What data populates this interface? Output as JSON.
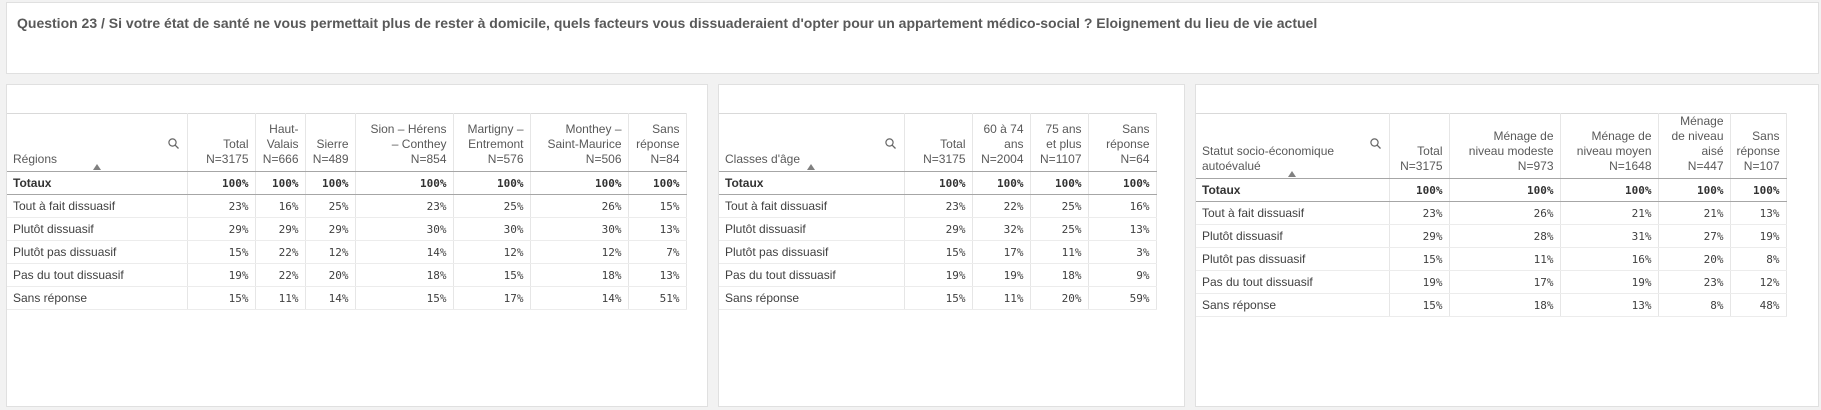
{
  "title": "Question 23 / Si votre état de santé ne vous permettait plus de rester à domicile, quels facteurs vous dissuaderaient d'opter pour un appartement médico-social ? Eloignement du lieu de vie actuel",
  "tables": [
    {
      "dimension": "Régions",
      "columns": [
        "Total N=3175",
        "Haut-Valais N=666",
        "Sierre N=489",
        "Sion – Hérens – Conthey N=854",
        "Martigny – Entremont N=576",
        "Monthey – Saint-Maurice N=506",
        "Sans réponse N=84"
      ],
      "totals_label": "Totaux",
      "totals": [
        "100%",
        "100%",
        "100%",
        "100%",
        "100%",
        "100%",
        "100%"
      ],
      "rows": [
        {
          "label": "Tout à fait dissuasif",
          "values": [
            "23%",
            "16%",
            "25%",
            "23%",
            "25%",
            "26%",
            "15%"
          ]
        },
        {
          "label": "Plutôt dissuasif",
          "values": [
            "29%",
            "29%",
            "29%",
            "30%",
            "30%",
            "30%",
            "13%"
          ]
        },
        {
          "label": "Plutôt pas dissuasif",
          "values": [
            "15%",
            "22%",
            "12%",
            "14%",
            "12%",
            "12%",
            "7%"
          ]
        },
        {
          "label": "Pas du tout dissuasif",
          "values": [
            "19%",
            "22%",
            "20%",
            "18%",
            "15%",
            "18%",
            "13%"
          ]
        },
        {
          "label": "Sans réponse",
          "values": [
            "15%",
            "11%",
            "14%",
            "15%",
            "17%",
            "14%",
            "51%"
          ]
        }
      ]
    },
    {
      "dimension": "Classes d'âge",
      "columns": [
        "Total N=3175",
        "60 à 74 ans N=2004",
        "75 ans et plus N=1107",
        "Sans réponse N=64"
      ],
      "totals_label": "Totaux",
      "totals": [
        "100%",
        "100%",
        "100%",
        "100%"
      ],
      "rows": [
        {
          "label": "Tout à fait dissuasif",
          "values": [
            "23%",
            "22%",
            "25%",
            "16%"
          ]
        },
        {
          "label": "Plutôt dissuasif",
          "values": [
            "29%",
            "32%",
            "25%",
            "13%"
          ]
        },
        {
          "label": "Plutôt pas dissuasif",
          "values": [
            "15%",
            "17%",
            "11%",
            "3%"
          ]
        },
        {
          "label": "Pas du tout dissuasif",
          "values": [
            "19%",
            "19%",
            "18%",
            "9%"
          ]
        },
        {
          "label": "Sans réponse",
          "values": [
            "15%",
            "11%",
            "20%",
            "59%"
          ]
        }
      ]
    },
    {
      "dimension": "Statut socio-économique autoévalué",
      "columns": [
        "Total N=3175",
        "Ménage de niveau modeste N=973",
        "Ménage de niveau moyen N=1648",
        "Ménage de niveau aisé N=447",
        "Sans réponse N=107"
      ],
      "totals_label": "Totaux",
      "totals": [
        "100%",
        "100%",
        "100%",
        "100%",
        "100%"
      ],
      "rows": [
        {
          "label": "Tout à fait dissuasif",
          "values": [
            "23%",
            "26%",
            "21%",
            "21%",
            "13%"
          ]
        },
        {
          "label": "Plutôt dissuasif",
          "values": [
            "29%",
            "28%",
            "31%",
            "27%",
            "19%"
          ]
        },
        {
          "label": "Plutôt pas dissuasif",
          "values": [
            "15%",
            "11%",
            "16%",
            "20%",
            "8%"
          ]
        },
        {
          "label": "Pas du tout dissuasif",
          "values": [
            "19%",
            "17%",
            "19%",
            "23%",
            "12%"
          ]
        },
        {
          "label": "Sans réponse",
          "values": [
            "15%",
            "18%",
            "13%",
            "8%",
            "48%"
          ]
        }
      ]
    }
  ]
}
